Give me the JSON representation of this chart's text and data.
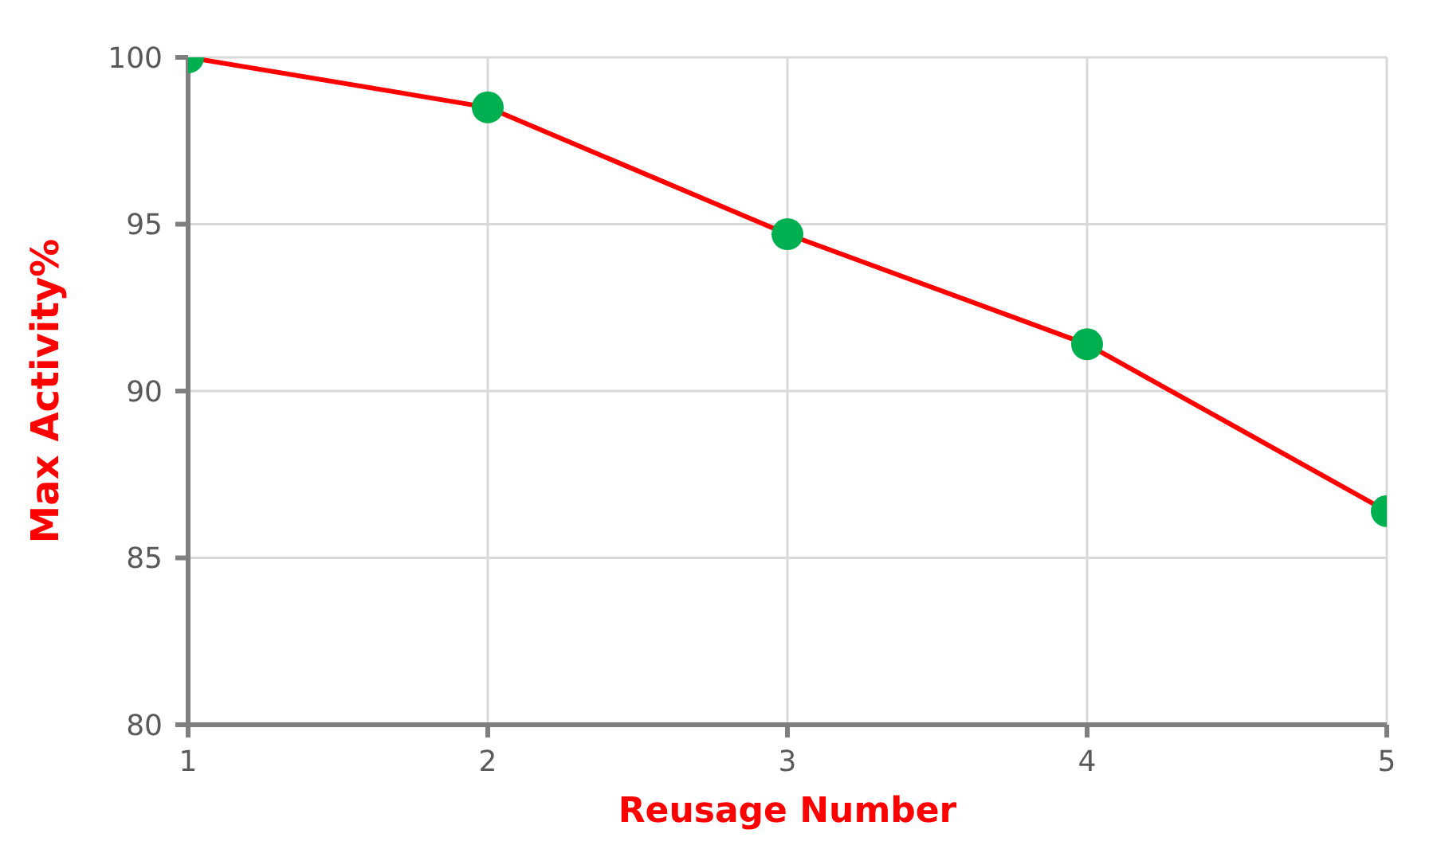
{
  "chart_data": {
    "type": "line",
    "xlabel": "Reusage Number",
    "ylabel": "Max Activity%",
    "x": [
      1,
      2,
      3,
      4,
      5
    ],
    "series": [
      {
        "color": "#ff0000",
        "colors": [
          "#00b050",
          "#00b050",
          "#00b050",
          "#00b050",
          "#00b050"
        ],
        "values": [
          100,
          98.5,
          94.7,
          91.4,
          86.4
        ]
      }
    ],
    "xlim": [
      1,
      5
    ],
    "xticks": [
      1,
      2,
      3,
      4,
      5
    ],
    "ylim": [
      80,
      100
    ],
    "yticks": [
      80,
      85,
      90,
      95,
      100
    ],
    "grid": true,
    "legend": false,
    "marker": "circle",
    "line_style": "solid"
  }
}
